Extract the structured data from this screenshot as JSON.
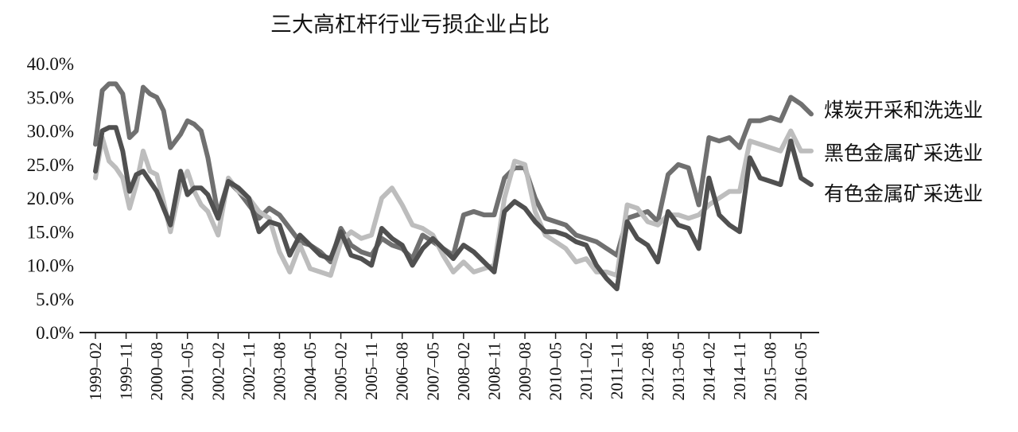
{
  "chart_data": {
    "type": "line",
    "title": "三大高杠杆行业亏损企业占比",
    "xlabel": "",
    "ylabel": "",
    "ylim": [
      0,
      0.4
    ],
    "y_ticks": [
      "0.0%",
      "5.0%",
      "10.0%",
      "15.0%",
      "20.0%",
      "25.0%",
      "30.0%",
      "35.0%",
      "40.0%"
    ],
    "x_ticks": [
      "1999–02",
      "1999–11",
      "2000–08",
      "2001–05",
      "2002–02",
      "2002–11",
      "2003–08",
      "2004–05",
      "2005–02",
      "2005–11",
      "2006–08",
      "2007–05",
      "2008–02",
      "2008–11",
      "2009–08",
      "2010–05",
      "2011–02",
      "2011–11",
      "2012–08",
      "2013–05",
      "2014–02",
      "2014–11",
      "2015–08",
      "2016–05"
    ],
    "x_range": [
      "1999–02",
      "2016–08"
    ],
    "grid": false,
    "legend": "right",
    "series": [
      {
        "name": "煤炭开采和洗选业",
        "color": "#707070",
        "points": [
          [
            "1999-02",
            0.28
          ],
          [
            "1999-04",
            0.36
          ],
          [
            "1999-06",
            0.37
          ],
          [
            "1999-08",
            0.37
          ],
          [
            "1999-10",
            0.355
          ],
          [
            "1999-12",
            0.29
          ],
          [
            "2000-02",
            0.3
          ],
          [
            "2000-04",
            0.365
          ],
          [
            "2000-06",
            0.355
          ],
          [
            "2000-08",
            0.35
          ],
          [
            "2000-10",
            0.33
          ],
          [
            "2000-12",
            0.275
          ],
          [
            "2001-03",
            0.295
          ],
          [
            "2001-05",
            0.315
          ],
          [
            "2001-07",
            0.31
          ],
          [
            "2001-09",
            0.3
          ],
          [
            "2001-11",
            0.26
          ],
          [
            "2002-02",
            0.175
          ],
          [
            "2002-05",
            0.225
          ],
          [
            "2002-08",
            0.21
          ],
          [
            "2002-11",
            0.19
          ],
          [
            "2003-02",
            0.17
          ],
          [
            "2003-05",
            0.185
          ],
          [
            "2003-08",
            0.175
          ],
          [
            "2003-11",
            0.155
          ],
          [
            "2004-02",
            0.135
          ],
          [
            "2004-05",
            0.13
          ],
          [
            "2004-08",
            0.12
          ],
          [
            "2004-11",
            0.105
          ],
          [
            "2005-02",
            0.155
          ],
          [
            "2005-05",
            0.13
          ],
          [
            "2005-08",
            0.12
          ],
          [
            "2005-11",
            0.115
          ],
          [
            "2006-02",
            0.14
          ],
          [
            "2006-05",
            0.13
          ],
          [
            "2006-08",
            0.125
          ],
          [
            "2006-11",
            0.11
          ],
          [
            "2007-02",
            0.145
          ],
          [
            "2007-05",
            0.135
          ],
          [
            "2007-08",
            0.125
          ],
          [
            "2007-11",
            0.115
          ],
          [
            "2008-02",
            0.175
          ],
          [
            "2008-05",
            0.18
          ],
          [
            "2008-08",
            0.175
          ],
          [
            "2008-11",
            0.175
          ],
          [
            "2009-02",
            0.23
          ],
          [
            "2009-05",
            0.245
          ],
          [
            "2009-08",
            0.245
          ],
          [
            "2009-11",
            0.2
          ],
          [
            "2010-02",
            0.17
          ],
          [
            "2010-05",
            0.165
          ],
          [
            "2010-08",
            0.16
          ],
          [
            "2010-11",
            0.145
          ],
          [
            "2011-02",
            0.14
          ],
          [
            "2011-05",
            0.135
          ],
          [
            "2011-08",
            0.125
          ],
          [
            "2011-11",
            0.115
          ],
          [
            "2012-02",
            0.17
          ],
          [
            "2012-05",
            0.175
          ],
          [
            "2012-08",
            0.18
          ],
          [
            "2012-11",
            0.165
          ],
          [
            "2013-02",
            0.235
          ],
          [
            "2013-05",
            0.25
          ],
          [
            "2013-08",
            0.245
          ],
          [
            "2013-11",
            0.19
          ],
          [
            "2014-02",
            0.29
          ],
          [
            "2014-05",
            0.285
          ],
          [
            "2014-08",
            0.29
          ],
          [
            "2014-11",
            0.275
          ],
          [
            "2015-02",
            0.315
          ],
          [
            "2015-05",
            0.315
          ],
          [
            "2015-08",
            0.32
          ],
          [
            "2015-11",
            0.315
          ],
          [
            "2016-02",
            0.35
          ],
          [
            "2016-05",
            0.34
          ],
          [
            "2016-08",
            0.325
          ]
        ]
      },
      {
        "name": "黑色金属矿采选业",
        "color": "#bdbdbd",
        "points": [
          [
            "1999-02",
            0.23
          ],
          [
            "1999-04",
            0.29
          ],
          [
            "1999-06",
            0.255
          ],
          [
            "1999-08",
            0.245
          ],
          [
            "1999-10",
            0.23
          ],
          [
            "1999-12",
            0.185
          ],
          [
            "2000-02",
            0.22
          ],
          [
            "2000-04",
            0.27
          ],
          [
            "2000-06",
            0.24
          ],
          [
            "2000-08",
            0.235
          ],
          [
            "2000-10",
            0.195
          ],
          [
            "2000-12",
            0.15
          ],
          [
            "2001-03",
            0.22
          ],
          [
            "2001-05",
            0.24
          ],
          [
            "2001-07",
            0.21
          ],
          [
            "2001-09",
            0.19
          ],
          [
            "2001-11",
            0.18
          ],
          [
            "2002-02",
            0.145
          ],
          [
            "2002-05",
            0.23
          ],
          [
            "2002-08",
            0.21
          ],
          [
            "2002-11",
            0.2
          ],
          [
            "2003-02",
            0.18
          ],
          [
            "2003-05",
            0.17
          ],
          [
            "2003-08",
            0.12
          ],
          [
            "2003-11",
            0.09
          ],
          [
            "2004-02",
            0.13
          ],
          [
            "2004-05",
            0.095
          ],
          [
            "2004-08",
            0.09
          ],
          [
            "2004-11",
            0.085
          ],
          [
            "2005-02",
            0.135
          ],
          [
            "2005-05",
            0.15
          ],
          [
            "2005-08",
            0.14
          ],
          [
            "2005-11",
            0.145
          ],
          [
            "2006-02",
            0.2
          ],
          [
            "2006-05",
            0.215
          ],
          [
            "2006-08",
            0.19
          ],
          [
            "2006-11",
            0.16
          ],
          [
            "2007-02",
            0.155
          ],
          [
            "2007-05",
            0.145
          ],
          [
            "2007-08",
            0.115
          ],
          [
            "2007-11",
            0.09
          ],
          [
            "2008-02",
            0.105
          ],
          [
            "2008-05",
            0.09
          ],
          [
            "2008-08",
            0.095
          ],
          [
            "2008-11",
            0.1
          ],
          [
            "2009-02",
            0.2
          ],
          [
            "2009-05",
            0.255
          ],
          [
            "2009-08",
            0.25
          ],
          [
            "2009-11",
            0.18
          ],
          [
            "2010-02",
            0.145
          ],
          [
            "2010-05",
            0.135
          ],
          [
            "2010-08",
            0.125
          ],
          [
            "2010-11",
            0.105
          ],
          [
            "2011-02",
            0.11
          ],
          [
            "2011-05",
            0.09
          ],
          [
            "2011-08",
            0.09
          ],
          [
            "2011-11",
            0.085
          ],
          [
            "2012-02",
            0.19
          ],
          [
            "2012-05",
            0.185
          ],
          [
            "2012-08",
            0.165
          ],
          [
            "2012-11",
            0.16
          ],
          [
            "2013-02",
            0.175
          ],
          [
            "2013-05",
            0.175
          ],
          [
            "2013-08",
            0.17
          ],
          [
            "2013-11",
            0.175
          ],
          [
            "2014-02",
            0.19
          ],
          [
            "2014-05",
            0.2
          ],
          [
            "2014-08",
            0.21
          ],
          [
            "2014-11",
            0.21
          ],
          [
            "2015-02",
            0.285
          ],
          [
            "2015-05",
            0.28
          ],
          [
            "2015-08",
            0.275
          ],
          [
            "2015-11",
            0.27
          ],
          [
            "2016-02",
            0.3
          ],
          [
            "2016-05",
            0.27
          ],
          [
            "2016-08",
            0.27
          ]
        ]
      },
      {
        "name": "有色金属矿采选业",
        "color": "#505050",
        "points": [
          [
            "1999-02",
            0.24
          ],
          [
            "1999-04",
            0.3
          ],
          [
            "1999-06",
            0.305
          ],
          [
            "1999-08",
            0.305
          ],
          [
            "1999-10",
            0.27
          ],
          [
            "1999-12",
            0.21
          ],
          [
            "2000-02",
            0.235
          ],
          [
            "2000-04",
            0.24
          ],
          [
            "2000-06",
            0.225
          ],
          [
            "2000-08",
            0.21
          ],
          [
            "2000-10",
            0.185
          ],
          [
            "2000-12",
            0.16
          ],
          [
            "2001-03",
            0.24
          ],
          [
            "2001-05",
            0.205
          ],
          [
            "2001-07",
            0.215
          ],
          [
            "2001-09",
            0.215
          ],
          [
            "2001-11",
            0.205
          ],
          [
            "2002-02",
            0.17
          ],
          [
            "2002-05",
            0.225
          ],
          [
            "2002-08",
            0.215
          ],
          [
            "2002-11",
            0.2
          ],
          [
            "2003-02",
            0.15
          ],
          [
            "2003-05",
            0.165
          ],
          [
            "2003-08",
            0.16
          ],
          [
            "2003-11",
            0.115
          ],
          [
            "2004-02",
            0.145
          ],
          [
            "2004-05",
            0.13
          ],
          [
            "2004-08",
            0.115
          ],
          [
            "2004-11",
            0.11
          ],
          [
            "2005-02",
            0.15
          ],
          [
            "2005-05",
            0.115
          ],
          [
            "2005-08",
            0.11
          ],
          [
            "2005-11",
            0.1
          ],
          [
            "2006-02",
            0.155
          ],
          [
            "2006-05",
            0.14
          ],
          [
            "2006-08",
            0.13
          ],
          [
            "2006-11",
            0.1
          ],
          [
            "2007-02",
            0.125
          ],
          [
            "2007-05",
            0.14
          ],
          [
            "2007-08",
            0.125
          ],
          [
            "2007-11",
            0.11
          ],
          [
            "2008-02",
            0.13
          ],
          [
            "2008-05",
            0.12
          ],
          [
            "2008-08",
            0.105
          ],
          [
            "2008-11",
            0.09
          ],
          [
            "2009-02",
            0.18
          ],
          [
            "2009-05",
            0.195
          ],
          [
            "2009-08",
            0.185
          ],
          [
            "2009-11",
            0.165
          ],
          [
            "2010-02",
            0.15
          ],
          [
            "2010-05",
            0.15
          ],
          [
            "2010-08",
            0.145
          ],
          [
            "2010-11",
            0.135
          ],
          [
            "2011-02",
            0.13
          ],
          [
            "2011-05",
            0.1
          ],
          [
            "2011-08",
            0.08
          ],
          [
            "2011-11",
            0.065
          ],
          [
            "2012-02",
            0.165
          ],
          [
            "2012-05",
            0.14
          ],
          [
            "2012-08",
            0.13
          ],
          [
            "2012-11",
            0.105
          ],
          [
            "2013-02",
            0.18
          ],
          [
            "2013-05",
            0.16
          ],
          [
            "2013-08",
            0.155
          ],
          [
            "2013-11",
            0.125
          ],
          [
            "2014-02",
            0.23
          ],
          [
            "2014-05",
            0.175
          ],
          [
            "2014-08",
            0.16
          ],
          [
            "2014-11",
            0.15
          ],
          [
            "2015-02",
            0.26
          ],
          [
            "2015-05",
            0.23
          ],
          [
            "2015-08",
            0.225
          ],
          [
            "2015-11",
            0.22
          ],
          [
            "2016-02",
            0.285
          ],
          [
            "2016-05",
            0.23
          ],
          [
            "2016-08",
            0.22
          ]
        ]
      }
    ]
  }
}
